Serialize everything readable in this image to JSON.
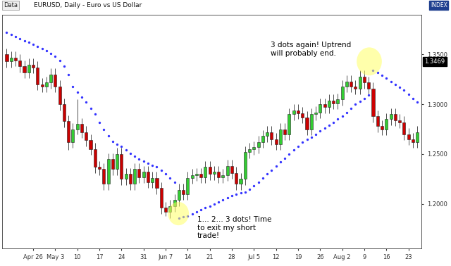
{
  "chart_data": {
    "type": "candlestick",
    "title": "EURUSD, Daily - Euro vs US Dollar",
    "source_label": "Data",
    "index_label": "INDEX",
    "categories": [
      null,
      null,
      null,
      null,
      null,
      null,
      "Apr 26",
      null,
      null,
      null,
      null,
      "May 3",
      null,
      null,
      null,
      null,
      "10",
      null,
      null,
      null,
      null,
      "17",
      null,
      null,
      null,
      null,
      "24",
      null,
      null,
      null,
      null,
      "31",
      null,
      null,
      null,
      null,
      "Jun 7",
      null,
      null,
      null,
      null,
      "14",
      null,
      null,
      null,
      null,
      "21",
      null,
      null,
      null,
      null,
      "28",
      null,
      null,
      null,
      null,
      "Jul 5",
      null,
      null,
      null,
      null,
      "12",
      null,
      null,
      null,
      null,
      "19",
      null,
      null,
      null,
      null,
      "26",
      null,
      null,
      null,
      null,
      "Aug 2",
      null,
      null,
      null,
      null,
      "9",
      null,
      null,
      null,
      null,
      "16",
      null,
      null,
      null,
      null,
      "23",
      null,
      null
    ],
    "series": [
      {
        "type": "candlestick",
        "colors": [
          "#33cc33",
          "#cc0000"
        ],
        "open": [
          1.35,
          1.343,
          1.347,
          1.344,
          1.338,
          1.332,
          1.34,
          1.337,
          1.32,
          1.318,
          1.322,
          1.33,
          1.318,
          1.3,
          1.283,
          1.262,
          1.275,
          1.28,
          1.272,
          1.264,
          1.255,
          1.237,
          1.235,
          1.22,
          1.245,
          1.235,
          1.25,
          1.225,
          1.23,
          1.22,
          1.235,
          1.227,
          1.232,
          1.222,
          1.226,
          1.216,
          1.196,
          1.192,
          1.198,
          1.204,
          1.214,
          1.21,
          1.226,
          1.229,
          1.23,
          1.227,
          1.237,
          1.23,
          1.232,
          1.227,
          1.229,
          1.238,
          1.231,
          1.22,
          1.225,
          1.252,
          1.255,
          1.257,
          1.262,
          1.268,
          1.272,
          1.265,
          1.26,
          1.275,
          1.27,
          1.29,
          1.294,
          1.291,
          1.287,
          1.275,
          1.29,
          1.292,
          1.3,
          1.297,
          1.304,
          1.301,
          1.305,
          1.318,
          1.323,
          1.318,
          1.316,
          1.328,
          1.322,
          1.316,
          1.288,
          1.278,
          1.275,
          1.285,
          1.29,
          1.284,
          1.282,
          1.27,
          1.265,
          1.262
        ],
        "high": [
          1.356,
          1.353,
          1.353,
          1.35,
          1.344,
          1.346,
          1.346,
          1.343,
          1.326,
          1.328,
          1.336,
          1.336,
          1.324,
          1.306,
          1.289,
          1.281,
          1.305,
          1.286,
          1.278,
          1.27,
          1.261,
          1.243,
          1.241,
          1.251,
          1.251,
          1.256,
          1.256,
          1.236,
          1.236,
          1.241,
          1.241,
          1.238,
          1.238,
          1.232,
          1.232,
          1.222,
          1.202,
          1.204,
          1.21,
          1.22,
          1.22,
          1.232,
          1.235,
          1.236,
          1.236,
          1.243,
          1.243,
          1.238,
          1.238,
          1.235,
          1.244,
          1.244,
          1.237,
          1.231,
          1.258,
          1.261,
          1.263,
          1.268,
          1.274,
          1.278,
          1.278,
          1.271,
          1.281,
          1.281,
          1.296,
          1.3,
          1.3,
          1.297,
          1.293,
          1.296,
          1.298,
          1.306,
          1.306,
          1.31,
          1.31,
          1.311,
          1.324,
          1.329,
          1.329,
          1.324,
          1.334,
          1.334,
          1.328,
          1.322,
          1.294,
          1.284,
          1.291,
          1.296,
          1.296,
          1.29,
          1.288,
          1.276,
          1.271,
          1.278
        ],
        "low": [
          1.337,
          1.337,
          1.338,
          1.332,
          1.326,
          1.326,
          1.331,
          1.314,
          1.312,
          1.312,
          1.316,
          1.312,
          1.294,
          1.277,
          1.254,
          1.256,
          1.27,
          1.266,
          1.258,
          1.249,
          1.231,
          1.229,
          1.214,
          1.214,
          1.229,
          1.229,
          1.219,
          1.219,
          1.214,
          1.214,
          1.221,
          1.221,
          1.216,
          1.216,
          1.21,
          1.19,
          1.188,
          1.186,
          1.192,
          1.198,
          1.204,
          1.204,
          1.22,
          1.223,
          1.221,
          1.221,
          1.224,
          1.224,
          1.221,
          1.221,
          1.223,
          1.225,
          1.214,
          1.214,
          1.219,
          1.246,
          1.249,
          1.251,
          1.256,
          1.262,
          1.259,
          1.254,
          1.254,
          1.264,
          1.264,
          1.284,
          1.285,
          1.281,
          1.269,
          1.269,
          1.284,
          1.286,
          1.291,
          1.291,
          1.295,
          1.295,
          1.299,
          1.312,
          1.312,
          1.31,
          1.31,
          1.316,
          1.31,
          1.282,
          1.272,
          1.269,
          1.269,
          1.279,
          1.278,
          1.276,
          1.264,
          1.259,
          1.256,
          1.256
        ],
        "close": [
          1.343,
          1.347,
          1.344,
          1.338,
          1.332,
          1.34,
          1.337,
          1.32,
          1.318,
          1.322,
          1.33,
          1.318,
          1.3,
          1.283,
          1.262,
          1.275,
          1.28,
          1.272,
          1.264,
          1.255,
          1.237,
          1.235,
          1.22,
          1.245,
          1.235,
          1.25,
          1.225,
          1.23,
          1.22,
          1.235,
          1.227,
          1.232,
          1.222,
          1.226,
          1.216,
          1.196,
          1.192,
          1.198,
          1.204,
          1.214,
          1.21,
          1.226,
          1.229,
          1.23,
          1.227,
          1.237,
          1.23,
          1.232,
          1.227,
          1.229,
          1.238,
          1.231,
          1.22,
          1.225,
          1.252,
          1.255,
          1.257,
          1.262,
          1.268,
          1.272,
          1.265,
          1.26,
          1.275,
          1.27,
          1.29,
          1.294,
          1.291,
          1.287,
          1.275,
          1.29,
          1.292,
          1.3,
          1.297,
          1.304,
          1.301,
          1.305,
          1.318,
          1.323,
          1.318,
          1.316,
          1.328,
          1.322,
          1.316,
          1.288,
          1.278,
          1.275,
          1.285,
          1.29,
          1.284,
          1.282,
          1.27,
          1.265,
          1.262,
          1.272
        ]
      },
      {
        "type": "scatter",
        "marker": "dot",
        "color": "#3333ff",
        "values": [
          1.372,
          1.37,
          1.368,
          1.366,
          1.364,
          1.362,
          1.36,
          1.358,
          1.356,
          1.354,
          1.351,
          1.348,
          1.344,
          1.338,
          1.33,
          1.318,
          1.312,
          1.307,
          1.302,
          1.296,
          1.29,
          1.282,
          1.275,
          1.268,
          1.263,
          1.26,
          1.258,
          1.254,
          1.251,
          1.248,
          1.245,
          1.243,
          1.241,
          1.239,
          1.237,
          1.234,
          1.23,
          1.226,
          1.222,
          1.186,
          1.187,
          1.188,
          1.19,
          1.192,
          1.194,
          1.196,
          1.198,
          1.2,
          1.202,
          1.204,
          1.206,
          1.208,
          1.21,
          1.211,
          1.212,
          1.215,
          1.218,
          1.222,
          1.226,
          1.23,
          1.234,
          1.238,
          1.242,
          1.246,
          1.25,
          1.254,
          1.258,
          1.262,
          1.265,
          1.267,
          1.27,
          1.273,
          1.276,
          1.279,
          1.282,
          1.285,
          1.288,
          1.292,
          1.296,
          1.3,
          1.303,
          1.306,
          1.309,
          1.334,
          1.332,
          1.329,
          1.326,
          1.323,
          1.32,
          1.317,
          1.314,
          1.31,
          1.306,
          1.302
        ]
      }
    ],
    "ylim": [
      1.155,
      1.39
    ],
    "yticks": [
      {
        "value": 1.2,
        "label": "1.2000"
      },
      {
        "value": 1.25,
        "label": "1.2500"
      },
      {
        "value": 1.3,
        "label": "1.3000"
      },
      {
        "value": 1.35,
        "label": "1.3500"
      }
    ],
    "price_marker": 1.3469,
    "grid": false,
    "annotations": [
      "1... 2... 3 dots! Time\nto exit my short\ntrade!",
      "3 dots again! Uptrend\nwill probably end."
    ]
  }
}
